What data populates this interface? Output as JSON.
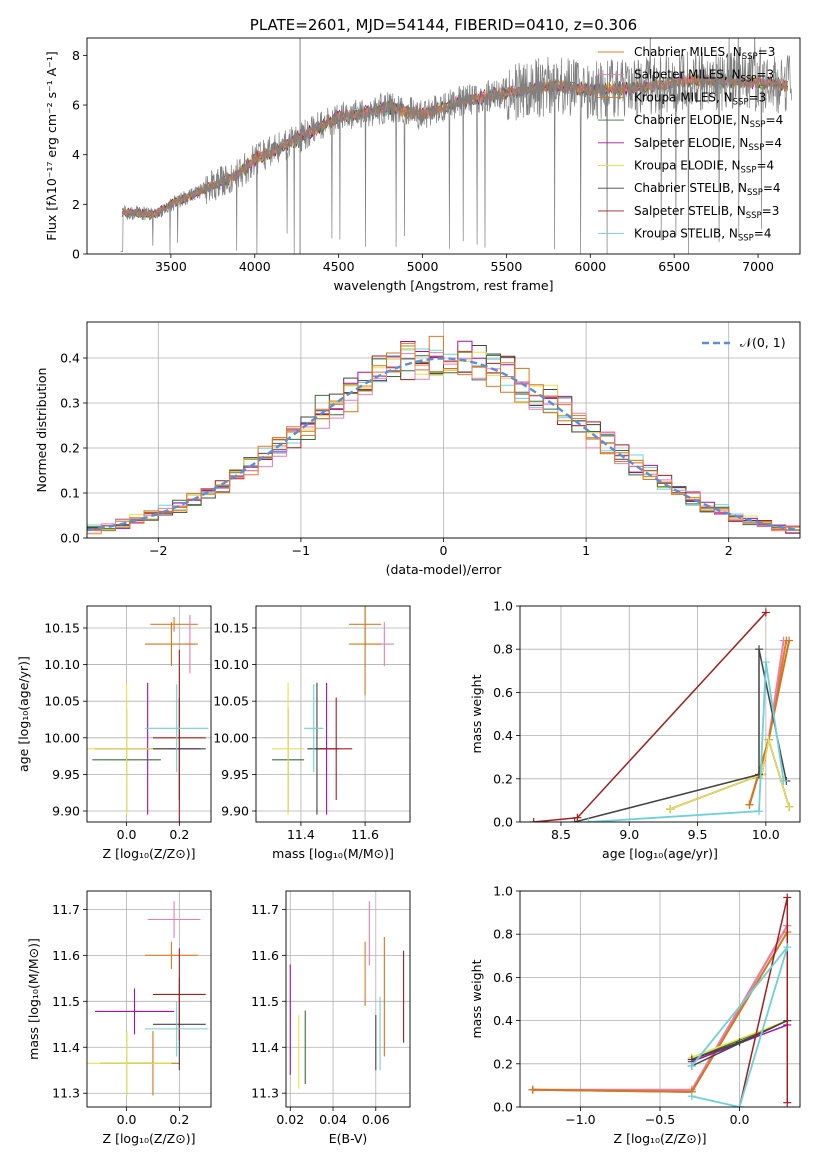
{
  "colors": [
    "#e07b29",
    "#e87fb1",
    "#d1771c",
    "#3a6e3a",
    "#a312a3",
    "#e8e24a",
    "#444444",
    "#a11e1e",
    "#6fd0d8"
  ],
  "legend_labels": [
    "Chabrier MILES, N",
    "Salpeter MILES, N",
    "Kroupa MILES, N",
    "Chabrier ELODIE, N",
    "Salpeter ELODIE, N",
    "Kroupa ELODIE, N",
    "Chabrier STELIB, N",
    "Salpeter STELIB, N",
    "Kroupa STELIB, N"
  ],
  "legend_sub": "SSP",
  "legend_counts": [
    "=3",
    "=3",
    "=3",
    "=4",
    "=4",
    "=4",
    "=4",
    "=3",
    "=4"
  ],
  "chart_data": [
    {
      "id": "spectrum",
      "type": "line",
      "title": "PLATE=2601, MJD=54144, FIBERID=0410, z=0.306",
      "xlabel": "wavelength [Angstrom, rest frame]",
      "ylabel": "Flux [fλ10⁻¹⁷ erg cm⁻² s⁻¹ A⁻¹]",
      "xlim": [
        3000,
        7250
      ],
      "ylim": [
        0,
        8.7
      ],
      "xticks": [
        3500,
        4000,
        4500,
        5000,
        5500,
        6000,
        6500,
        7000
      ],
      "yticks": [
        0,
        2,
        4,
        6,
        8
      ],
      "grid": false,
      "legend": "right",
      "continuum": {
        "x": [
          3200,
          3400,
          3500,
          3700,
          3900,
          4000,
          4300,
          4500,
          4800,
          5000,
          5200,
          5500,
          5800,
          6000,
          6300,
          6600,
          7000,
          7200
        ],
        "y": [
          1.7,
          1.6,
          2.0,
          2.6,
          3.2,
          3.8,
          4.8,
          5.5,
          5.9,
          5.6,
          6.1,
          6.5,
          6.8,
          6.6,
          6.7,
          7.0,
          6.9,
          6.8
        ]
      }
    },
    {
      "id": "residuals",
      "type": "histogram",
      "xlabel": "(data-model)/error",
      "ylabel": "Normed distribution",
      "xlim": [
        -2.5,
        2.5
      ],
      "ylim": [
        0,
        0.48
      ],
      "xticks": [
        -2,
        -1,
        0,
        1,
        2
      ],
      "yticks": [
        0.0,
        0.1,
        0.2,
        0.3,
        0.4
      ],
      "grid": true,
      "legend": "top-right",
      "gauss_label": "𝒩(0, 1)",
      "bin_width": 0.1
    },
    {
      "id": "age_vs_Z",
      "type": "errorbar",
      "xlabel": "Z [log₁₀(Z/Z⊙)]",
      "ylabel": "age  [log₁₀(age/yr)]",
      "xlim": [
        -0.15,
        0.32
      ],
      "ylim": [
        9.885,
        10.18
      ],
      "xticks": [
        0.0,
        0.2
      ],
      "yticks": [
        9.9,
        9.95,
        10.0,
        10.05,
        10.1,
        10.15
      ],
      "grid": true,
      "points": [
        {
          "x": 0.18,
          "y": 10.155,
          "xerr": 0.09,
          "yerr": 0.01
        },
        {
          "x": 0.24,
          "y": 10.128,
          "xerr": 0.02,
          "yerr": 0.04
        },
        {
          "x": 0.17,
          "y": 10.128,
          "xerr": 0.1,
          "yerr": 0.03
        },
        {
          "x": 0.0,
          "y": 9.97,
          "xerr": 0.13,
          "yerr": 0.07
        },
        {
          "x": 0.08,
          "y": 9.985,
          "xerr": 0.2,
          "yerr": 0.09
        },
        {
          "x": 0.0,
          "y": 9.985,
          "xerr": 0.16,
          "yerr": 0.09
        },
        {
          "x": 0.2,
          "y": 9.985,
          "xerr": 0.1,
          "yerr": 0.07
        },
        {
          "x": 0.2,
          "y": 10.0,
          "xerr": 0.1,
          "yerr": 0.12
        },
        {
          "x": 0.19,
          "y": 10.013,
          "xerr": 0.12,
          "yerr": 0.06
        }
      ]
    },
    {
      "id": "age_vs_mass",
      "type": "errorbar",
      "xlabel": "mass [log₁₀(M/M⊙)]",
      "ylabel": "",
      "xlim": [
        11.26,
        11.74
      ],
      "ylim": [
        9.885,
        10.18
      ],
      "xticks": [
        11.4,
        11.6
      ],
      "yticks": [
        9.9,
        9.95,
        10.0,
        10.05,
        10.1,
        10.15
      ],
      "grid": true,
      "points": [
        {
          "x": 11.6,
          "y": 10.155,
          "xerr": 0.05,
          "yerr": 0.03
        },
        {
          "x": 11.66,
          "y": 10.128,
          "xerr": 0.03,
          "yerr": 0.03
        },
        {
          "x": 11.6,
          "y": 10.128,
          "xerr": 0.05,
          "yerr": 0.07
        },
        {
          "x": 11.36,
          "y": 9.97,
          "xerr": 0.05,
          "yerr": 0.07
        },
        {
          "x": 11.48,
          "y": 9.985,
          "xerr": 0.04,
          "yerr": 0.09
        },
        {
          "x": 11.36,
          "y": 9.985,
          "xerr": 0.05,
          "yerr": 0.09
        },
        {
          "x": 11.45,
          "y": 9.985,
          "xerr": 0.03,
          "yerr": 0.09
        },
        {
          "x": 11.51,
          "y": 9.985,
          "xerr": 0.05,
          "yerr": 0.07
        },
        {
          "x": 11.44,
          "y": 10.013,
          "xerr": 0.03,
          "yerr": 0.06
        }
      ]
    },
    {
      "id": "weight_vs_age",
      "type": "line",
      "xlabel": "age  [log₁₀(age/yr)]",
      "ylabel": "mass weight",
      "xlim": [
        8.2,
        10.25
      ],
      "ylim": [
        0,
        1.0
      ],
      "xticks": [
        8.5,
        9.0,
        9.5,
        10.0
      ],
      "yticks": [
        0.0,
        0.2,
        0.4,
        0.6,
        0.8,
        1.0
      ],
      "grid": true,
      "series": [
        {
          "x": [
            9.88,
            10.02,
            10.15
          ],
          "y": [
            0.08,
            0.38,
            0.84
          ]
        },
        {
          "x": [
            9.88,
            10.02,
            10.13
          ],
          "y": [
            0.08,
            0.38,
            0.84
          ]
        },
        {
          "x": [
            9.88,
            10.02,
            10.17
          ],
          "y": [
            0.08,
            0.38,
            0.84
          ]
        },
        {
          "x": [
            9.3,
            9.97,
            10.02,
            10.17
          ],
          "y": [
            0.06,
            0.22,
            0.38,
            0.07
          ]
        },
        {
          "x": [
            9.3,
            9.97,
            10.02,
            10.17
          ],
          "y": [
            0.06,
            0.22,
            0.38,
            0.07
          ]
        },
        {
          "x": [
            9.3,
            9.97,
            10.02,
            10.17
          ],
          "y": [
            0.06,
            0.22,
            0.38,
            0.07
          ]
        },
        {
          "x": [
            8.6,
            9.95,
            9.95,
            10.15
          ],
          "y": [
            0.0,
            0.22,
            0.8,
            0.19
          ]
        },
        {
          "x": [
            8.3,
            8.62,
            10.0
          ],
          "y": [
            0.0,
            0.02,
            0.97
          ]
        },
        {
          "x": [
            8.7,
            9.95,
            10.0,
            10.13
          ],
          "y": [
            0.0,
            0.05,
            0.74,
            0.19
          ]
        }
      ]
    },
    {
      "id": "mass_vs_Z",
      "type": "errorbar",
      "xlabel": "Z [log₁₀(Z/Z⊙)]",
      "ylabel": "mass [log₁₀(M/M⊙)]",
      "xlim": [
        -0.15,
        0.32
      ],
      "ylim": [
        11.27,
        11.74
      ],
      "xticks": [
        0.0,
        0.2
      ],
      "yticks": [
        11.3,
        11.4,
        11.5,
        11.6,
        11.7
      ],
      "grid": true,
      "points": [
        {
          "x": 0.17,
          "y": 11.6,
          "xerr": 0.1,
          "yerr": 0.03
        },
        {
          "x": 0.18,
          "y": 11.678,
          "xerr": 0.1,
          "yerr": 0.04
        },
        {
          "x": 0.1,
          "y": 11.365,
          "xerr": 0.1,
          "yerr": 0.07
        },
        {
          "x": 0.0,
          "y": 11.365,
          "xerr": 0.1,
          "yerr": 0.07
        },
        {
          "x": 0.03,
          "y": 11.478,
          "xerr": 0.15,
          "yerr": 0.05
        },
        {
          "x": 0.0,
          "y": 11.365,
          "xerr": 0.17,
          "yerr": 0.07
        },
        {
          "x": 0.2,
          "y": 11.45,
          "xerr": 0.1,
          "yerr": 0.1
        },
        {
          "x": 0.2,
          "y": 11.515,
          "xerr": 0.1,
          "yerr": 0.1
        },
        {
          "x": 0.19,
          "y": 11.44,
          "xerr": 0.12,
          "yerr": 0.06
        }
      ]
    },
    {
      "id": "mass_vs_EBV",
      "type": "errorbar",
      "xlabel": "E(B-V)",
      "ylabel": "",
      "xlim": [
        0.018,
        0.076
      ],
      "ylim": [
        11.27,
        11.74
      ],
      "xticks": [
        0.02,
        0.04,
        0.06
      ],
      "yticks": [
        11.3,
        11.4,
        11.5,
        11.6,
        11.7
      ],
      "grid": true,
      "points": [
        {
          "x": 0.055,
          "y": 11.56,
          "xerr": 0,
          "yerr": 0.07
        },
        {
          "x": 0.057,
          "y": 11.648,
          "xerr": 0,
          "yerr": 0.07
        },
        {
          "x": 0.064,
          "y": 11.51,
          "xerr": 0,
          "yerr": 0.13
        },
        {
          "x": 0.027,
          "y": 11.4,
          "xerr": 0,
          "yerr": 0.08
        },
        {
          "x": 0.02,
          "y": 11.46,
          "xerr": 0,
          "yerr": 0.12
        },
        {
          "x": 0.024,
          "y": 11.39,
          "xerr": 0,
          "yerr": 0.08
        },
        {
          "x": 0.06,
          "y": 11.41,
          "xerr": 0,
          "yerr": 0.06
        },
        {
          "x": 0.073,
          "y": 11.51,
          "xerr": 0,
          "yerr": 0.1
        },
        {
          "x": 0.062,
          "y": 11.43,
          "xerr": 0,
          "yerr": 0.08
        }
      ]
    },
    {
      "id": "weight_vs_Z",
      "type": "line",
      "xlabel": "Z [log₁₀(Z/Z⊙)]",
      "ylabel": "mass weight",
      "xlim": [
        -1.38,
        0.38
      ],
      "ylim": [
        0,
        1.0
      ],
      "xticks": [
        -1.0,
        -0.5,
        0.0
      ],
      "yticks": [
        0.0,
        0.2,
        0.4,
        0.6,
        0.8,
        1.0
      ],
      "grid": true,
      "series": [
        {
          "x": [
            -1.3,
            -0.3,
            0.3
          ],
          "y": [
            0.08,
            0.07,
            0.84
          ]
        },
        {
          "x": [
            -1.3,
            -0.3,
            0.3
          ],
          "y": [
            0.08,
            0.08,
            0.84
          ]
        },
        {
          "x": [
            -1.3,
            -0.3,
            0.3
          ],
          "y": [
            0.08,
            0.07,
            0.81
          ]
        },
        {
          "x": [
            -0.3,
            0.3
          ],
          "y": [
            0.22,
            0.4
          ]
        },
        {
          "x": [
            -0.3,
            0.3
          ],
          "y": [
            0.21,
            0.38
          ]
        },
        {
          "x": [
            -0.3,
            0.3
          ],
          "y": [
            0.23,
            0.4
          ]
        },
        {
          "x": [
            -0.3,
            0.0,
            0.3,
            -0.3
          ],
          "y": [
            0.22,
            0.3,
            0.4,
            0.19
          ]
        },
        {
          "x": [
            0.0,
            0.3,
            0.3
          ],
          "y": [
            0.0,
            0.97,
            0.02
          ]
        },
        {
          "x": [
            -0.3,
            0.0,
            0.3,
            -0.3
          ],
          "y": [
            0.05,
            0.0,
            0.74,
            0.19
          ]
        }
      ]
    }
  ]
}
